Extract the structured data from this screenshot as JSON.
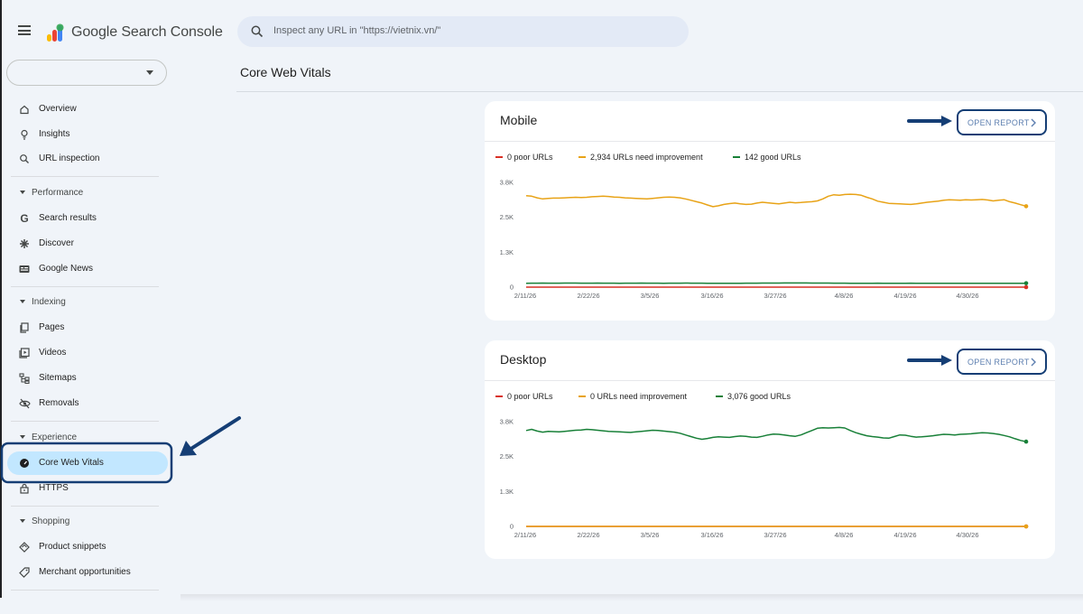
{
  "header": {
    "brand": "Google Search Console",
    "search_placeholder": "Inspect any URL in \"https://vietnix.vn/\""
  },
  "sidebar": {
    "items_top": [
      {
        "label": "Overview",
        "icon": "home-icon"
      },
      {
        "label": "Insights",
        "icon": "lightbulb-icon"
      },
      {
        "label": "URL inspection",
        "icon": "search-icon"
      }
    ],
    "performance": {
      "title": "Performance",
      "items": [
        {
          "label": "Search results",
          "icon": "google-g-icon"
        },
        {
          "label": "Discover",
          "icon": "asterisk-icon"
        },
        {
          "label": "Google News",
          "icon": "news-icon"
        }
      ]
    },
    "indexing": {
      "title": "Indexing",
      "items": [
        {
          "label": "Pages",
          "icon": "pages-icon"
        },
        {
          "label": "Videos",
          "icon": "video-icon"
        },
        {
          "label": "Sitemaps",
          "icon": "sitemap-icon"
        },
        {
          "label": "Removals",
          "icon": "eye-off-icon"
        }
      ]
    },
    "experience": {
      "title": "Experience",
      "items": [
        {
          "label": "Core Web Vitals",
          "icon": "gauge-icon",
          "active": true
        },
        {
          "label": "HTTPS",
          "icon": "lock-icon"
        }
      ]
    },
    "shopping": {
      "title": "Shopping",
      "items": [
        {
          "label": "Product snippets",
          "icon": "diamond-icon"
        },
        {
          "label": "Merchant opportunities",
          "icon": "tag-icon"
        }
      ]
    }
  },
  "main": {
    "page_title": "Core Web Vitals",
    "open_report_label": "OPEN REPORT"
  },
  "colors": {
    "poor": "#d93025",
    "needs_improvement": "#e8a317",
    "good": "#188038",
    "active_nav": "#c2e7ff",
    "annotation": "#153e75"
  },
  "chart_data": [
    {
      "type": "line",
      "title": "Mobile",
      "legend": [
        "0 poor URLs",
        "2,934 URLs need improvement",
        "142 good URLs"
      ],
      "x_ticks": [
        "2/11/26",
        "2/22/26",
        "3/5/26",
        "3/16/26",
        "3/27/26",
        "4/8/26",
        "4/19/26",
        "4/30/26"
      ],
      "y_ticks": [
        "0",
        "1.3K",
        "2.5K",
        "3.8K"
      ],
      "ylim": [
        0,
        3800
      ],
      "series": [
        {
          "name": "poor",
          "color": "#d93025",
          "values": [
            0,
            0,
            0,
            0,
            0,
            0,
            0,
            0,
            0,
            0,
            0,
            0,
            0,
            0,
            0,
            0,
            0,
            0,
            0,
            0,
            0,
            0,
            0,
            0,
            0,
            0,
            0,
            0,
            0,
            0,
            0,
            0,
            0,
            0,
            0,
            0,
            0,
            0,
            0,
            0,
            0,
            0,
            0,
            0,
            0,
            0,
            0,
            0,
            0,
            0,
            0,
            0,
            0,
            0,
            0,
            0,
            0,
            0,
            0,
            0,
            0,
            0,
            0,
            0,
            0,
            0,
            0,
            0,
            0,
            0,
            0,
            0,
            0,
            0,
            0,
            0,
            0,
            0,
            0,
            0,
            0,
            0,
            0,
            0,
            0,
            0,
            0,
            0,
            0,
            0,
            0,
            0
          ]
        },
        {
          "name": "needs improvement",
          "color": "#e8a317",
          "values": [
            3320,
            3300,
            3240,
            3200,
            3220,
            3230,
            3230,
            3240,
            3250,
            3260,
            3250,
            3260,
            3280,
            3290,
            3300,
            3290,
            3270,
            3260,
            3240,
            3230,
            3220,
            3210,
            3200,
            3220,
            3240,
            3260,
            3270,
            3260,
            3240,
            3200,
            3150,
            3100,
            3050,
            2980,
            2920,
            2950,
            3000,
            3030,
            3050,
            3020,
            3000,
            3010,
            3050,
            3080,
            3060,
            3040,
            3020,
            3050,
            3080,
            3060,
            3070,
            3090,
            3100,
            3130,
            3200,
            3300,
            3350,
            3330,
            3360,
            3370,
            3360,
            3330,
            3260,
            3200,
            3120,
            3080,
            3040,
            3030,
            3020,
            3010,
            3000,
            3020,
            3050,
            3080,
            3100,
            3120,
            3150,
            3170,
            3160,
            3150,
            3170,
            3160,
            3170,
            3180,
            3160,
            3130,
            3150,
            3170,
            3100,
            3050,
            2990,
            2934
          ]
        },
        {
          "name": "good",
          "color": "#188038",
          "values": [
            142,
            144,
            145,
            146,
            145,
            144,
            145,
            146,
            147,
            146,
            145,
            144,
            145,
            146,
            145,
            144,
            143,
            142,
            143,
            144,
            145,
            146,
            145,
            144,
            143,
            142,
            143,
            144,
            145,
            146,
            145,
            144,
            143,
            142,
            141,
            140,
            139,
            140,
            141,
            142,
            143,
            144,
            145,
            146,
            147,
            148,
            149,
            150,
            151,
            152,
            151,
            150,
            149,
            148,
            147,
            146,
            145,
            144,
            143,
            142,
            141,
            140,
            141,
            142,
            143,
            142,
            141,
            140,
            141,
            142,
            143,
            142,
            141,
            140,
            139,
            140,
            141,
            142,
            141,
            140,
            139,
            140,
            141,
            142,
            141,
            142,
            141,
            142,
            141,
            142,
            142,
            142
          ]
        }
      ]
    },
    {
      "type": "line",
      "title": "Desktop",
      "legend": [
        "0 poor URLs",
        "0 URLs need improvement",
        "3,076 good URLs"
      ],
      "x_ticks": [
        "2/11/26",
        "2/22/26",
        "3/5/26",
        "3/16/26",
        "3/27/26",
        "4/8/26",
        "4/19/26",
        "4/30/26"
      ],
      "y_ticks": [
        "0",
        "1.3K",
        "2.5K",
        "3.8K"
      ],
      "ylim": [
        0,
        3800
      ],
      "series": [
        {
          "name": "poor",
          "color": "#d93025",
          "values": [
            0,
            0,
            0,
            0,
            0,
            0,
            0,
            0,
            0,
            0,
            0,
            0,
            0,
            0,
            0,
            0,
            0,
            0,
            0,
            0,
            0,
            0,
            0,
            0,
            0,
            0,
            0,
            0,
            0,
            0,
            0,
            0,
            0,
            0,
            0,
            0,
            0,
            0,
            0,
            0,
            0,
            0,
            0,
            0,
            0,
            0,
            0,
            0,
            0,
            0,
            0,
            0,
            0,
            0,
            0,
            0,
            0,
            0,
            0,
            0,
            0,
            0,
            0,
            0,
            0,
            0,
            0,
            0,
            0,
            0,
            0,
            0,
            0,
            0,
            0,
            0,
            0,
            0,
            0,
            0,
            0,
            0,
            0,
            0,
            0,
            0,
            0,
            0,
            0,
            0,
            0,
            0
          ]
        },
        {
          "name": "needs improvement",
          "color": "#e8a317",
          "values": [
            0,
            0,
            0,
            0,
            0,
            0,
            0,
            0,
            0,
            0,
            0,
            0,
            0,
            0,
            0,
            0,
            0,
            0,
            0,
            0,
            0,
            0,
            0,
            0,
            0,
            0,
            0,
            0,
            0,
            0,
            0,
            0,
            0,
            0,
            0,
            0,
            0,
            0,
            0,
            0,
            0,
            0,
            0,
            0,
            0,
            0,
            0,
            0,
            0,
            0,
            0,
            0,
            0,
            0,
            0,
            0,
            0,
            0,
            0,
            0,
            0,
            0,
            0,
            0,
            0,
            0,
            0,
            0,
            0,
            0,
            0,
            0,
            0,
            0,
            0,
            0,
            0,
            0,
            0,
            0,
            0,
            0,
            0,
            0,
            0,
            0,
            0,
            0,
            0,
            0,
            0,
            0
          ]
        },
        {
          "name": "good",
          "color": "#188038",
          "values": [
            3480,
            3520,
            3460,
            3420,
            3450,
            3440,
            3430,
            3450,
            3470,
            3490,
            3500,
            3520,
            3510,
            3490,
            3470,
            3450,
            3440,
            3430,
            3420,
            3410,
            3430,
            3450,
            3470,
            3490,
            3480,
            3460,
            3440,
            3420,
            3380,
            3320,
            3260,
            3200,
            3160,
            3190,
            3230,
            3250,
            3240,
            3230,
            3260,
            3280,
            3270,
            3240,
            3230,
            3270,
            3320,
            3350,
            3340,
            3320,
            3290,
            3270,
            3320,
            3400,
            3480,
            3560,
            3580,
            3570,
            3580,
            3590,
            3570,
            3480,
            3400,
            3340,
            3290,
            3260,
            3240,
            3210,
            3200,
            3260,
            3320,
            3310,
            3270,
            3240,
            3250,
            3270,
            3290,
            3320,
            3340,
            3330,
            3320,
            3340,
            3350,
            3360,
            3380,
            3400,
            3390,
            3370,
            3340,
            3300,
            3250,
            3180,
            3120,
            3076
          ]
        }
      ]
    }
  ]
}
